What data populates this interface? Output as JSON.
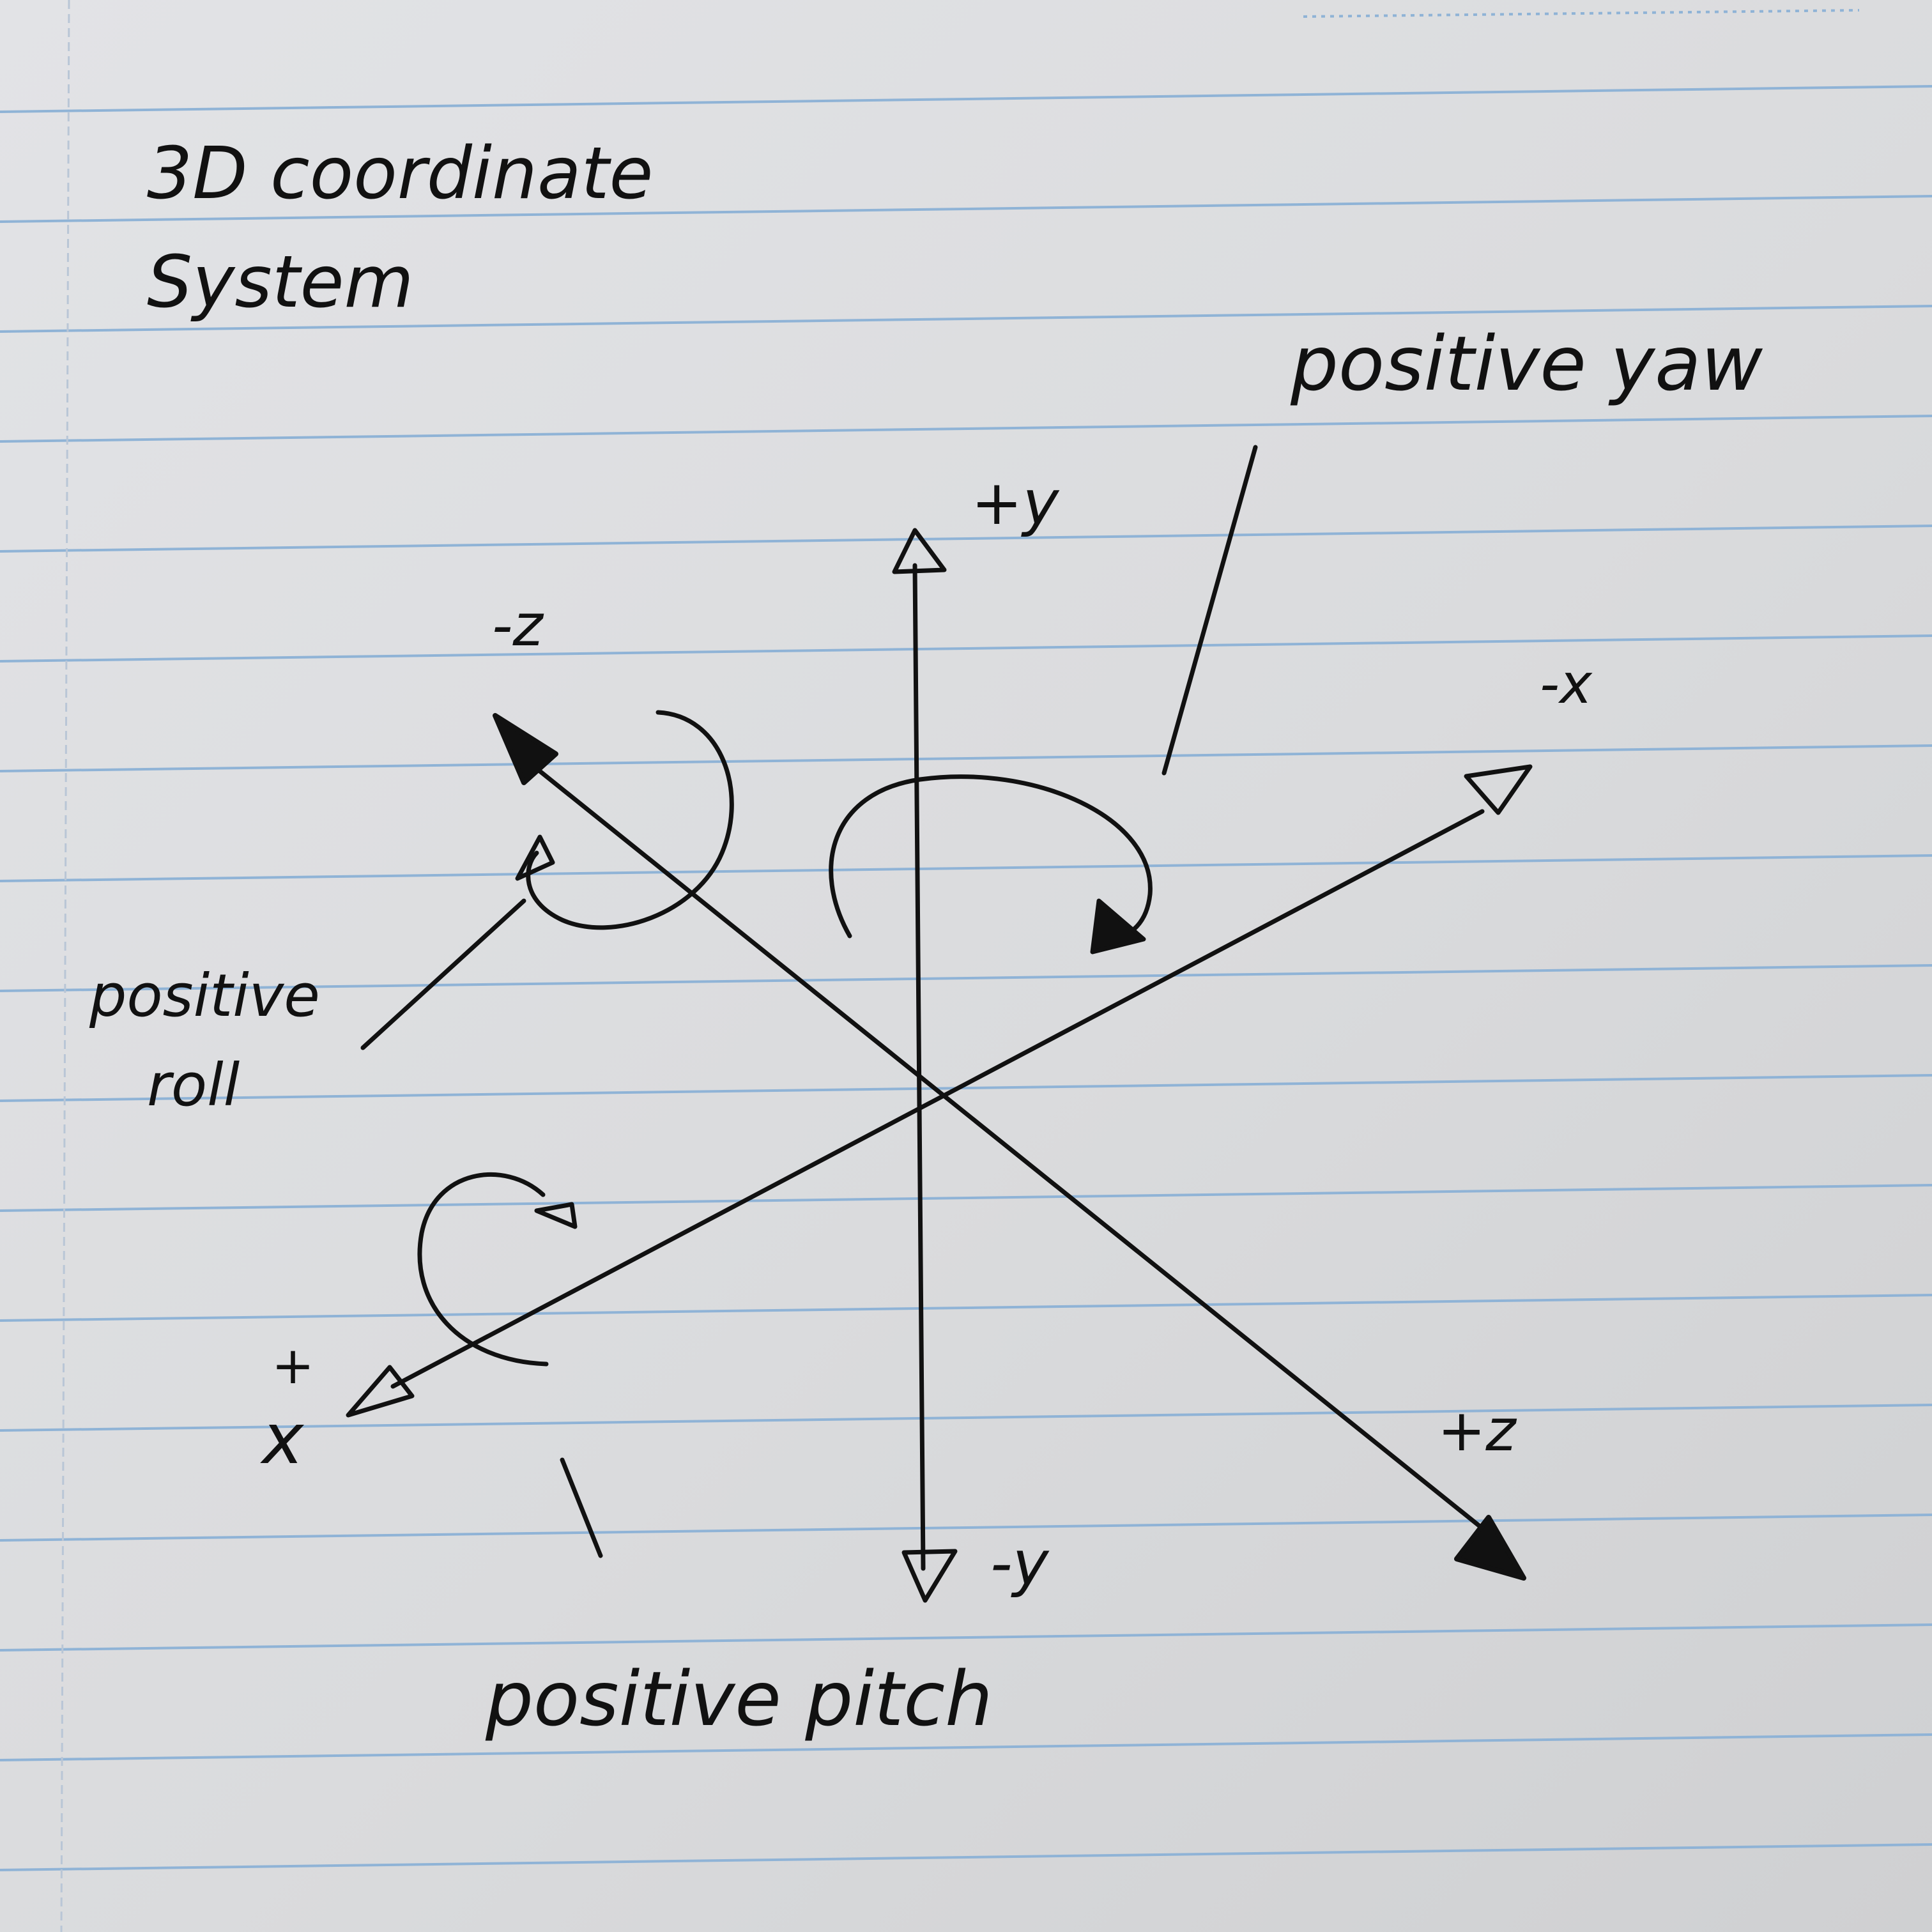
{
  "title": {
    "line1": "3D coordinate",
    "line2": "System"
  },
  "axes": {
    "plus_y": "+y",
    "minus_y": "-y",
    "plus_x_sign": "+",
    "plus_x_letter": "x",
    "minus_x": "-x",
    "plus_z": "+z",
    "minus_z": "-z"
  },
  "rotations": {
    "yaw": "positive yaw",
    "roll_line1": "positive",
    "roll_line2": "roll",
    "pitch": "positive pitch"
  },
  "colors": {
    "paper": "#dcdcde",
    "ruled_line": "#8fb3d6",
    "margin_line": "#b9c6d6",
    "ink": "#111111"
  }
}
